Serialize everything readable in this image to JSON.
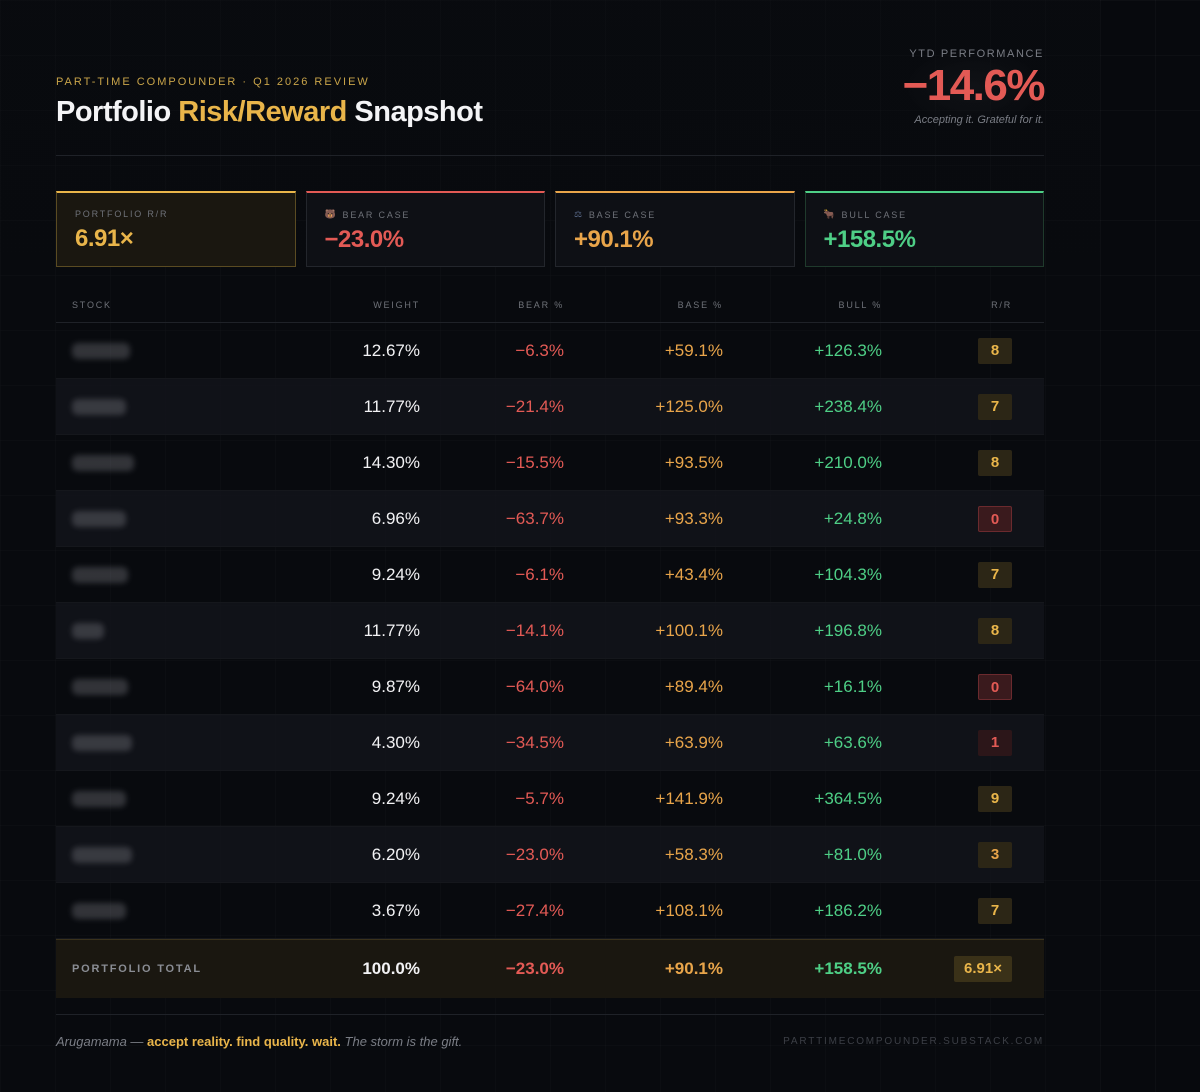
{
  "header": {
    "eyebrow": "PART-TIME COMPOUNDER · Q1 2026 REVIEW",
    "title_pre": "Portfolio ",
    "title_accent": "Risk/Reward",
    "title_post": " Snapshot",
    "ytd_label": "YTD PERFORMANCE",
    "ytd_value": "−14.6%",
    "ytd_sub": "Accepting it. Grateful for it."
  },
  "cards": [
    {
      "label": "PORTFOLIO R/R",
      "icon": "",
      "value": "6.91×"
    },
    {
      "label": "BEAR CASE",
      "icon": "bear-icon",
      "value": "−23.0%"
    },
    {
      "label": "BASE CASE",
      "icon": "scale-icon",
      "value": "+90.1%"
    },
    {
      "label": "BULL CASE",
      "icon": "bull-icon",
      "value": "+158.5%"
    }
  ],
  "table": {
    "columns": [
      "STOCK",
      "WEIGHT",
      "BEAR %",
      "BASE %",
      "BULL %",
      "R/R"
    ],
    "rows": [
      {
        "weight": "12.67%",
        "bear": "−6.3%",
        "base": "+59.1%",
        "bull": "+126.3%",
        "rr": "8"
      },
      {
        "weight": "11.77%",
        "bear": "−21.4%",
        "base": "+125.0%",
        "bull": "+238.4%",
        "rr": "7"
      },
      {
        "weight": "14.30%",
        "bear": "−15.5%",
        "base": "+93.5%",
        "bull": "+210.0%",
        "rr": "8"
      },
      {
        "weight": "6.96%",
        "bear": "−63.7%",
        "base": "+93.3%",
        "bull": "+24.8%",
        "rr": "0"
      },
      {
        "weight": "9.24%",
        "bear": "−6.1%",
        "base": "+43.4%",
        "bull": "+104.3%",
        "rr": "7"
      },
      {
        "weight": "11.77%",
        "bear": "−14.1%",
        "base": "+100.1%",
        "bull": "+196.8%",
        "rr": "8"
      },
      {
        "weight": "9.87%",
        "bear": "−64.0%",
        "base": "+89.4%",
        "bull": "+16.1%",
        "rr": "0"
      },
      {
        "weight": "4.30%",
        "bear": "−34.5%",
        "base": "+63.9%",
        "bull": "+63.6%",
        "rr": "1"
      },
      {
        "weight": "9.24%",
        "bear": "−5.7%",
        "base": "+141.9%",
        "bull": "+364.5%",
        "rr": "9"
      },
      {
        "weight": "6.20%",
        "bear": "−23.0%",
        "base": "+58.3%",
        "bull": "+81.0%",
        "rr": "3"
      },
      {
        "weight": "3.67%",
        "bear": "−27.4%",
        "base": "+108.1%",
        "bull": "+186.2%",
        "rr": "7"
      }
    ],
    "total": {
      "label": "PORTFOLIO TOTAL",
      "weight": "100.0%",
      "bear": "−23.0%",
      "base": "+90.1%",
      "bull": "+158.5%",
      "rr": "6.91×"
    }
  },
  "footer": {
    "author": "Arugamama",
    "dash": " — ",
    "motto": "accept reality. find quality. wait.",
    "tail": " The storm is the gift.",
    "site": "PARTTIMECOMPOUNDER.SUBSTACK.COM"
  }
}
